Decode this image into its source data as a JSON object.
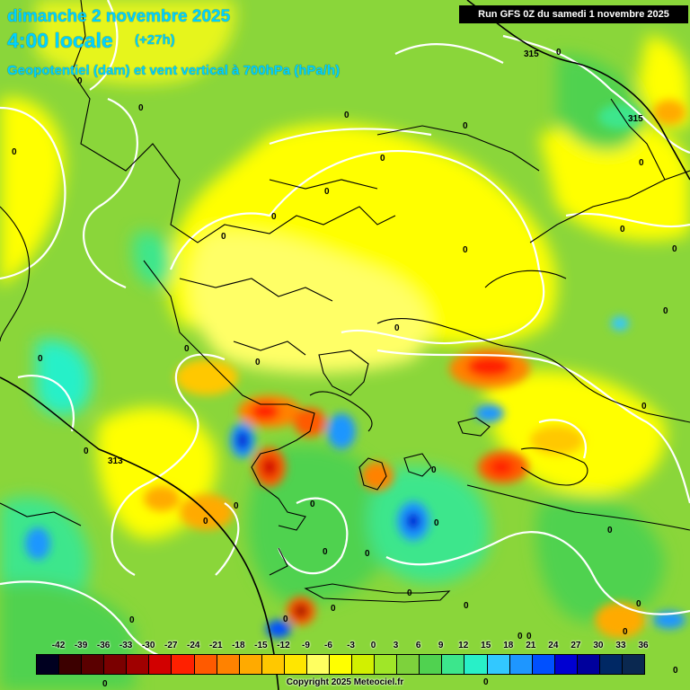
{
  "title": {
    "date": "dimanche 2 novembre 2025",
    "time": "4:00 locale",
    "offset": "(+27h)",
    "parameter": "Geopotentiel (dam) et vent vertical à 700hPa (hPa/h)"
  },
  "run_label": "Run GFS 0Z du samedi 1 novembre 2025",
  "copyright": "Copyright 2025 Meteociel.fr",
  "legend": {
    "ticks": [
      "-42",
      "-39",
      "-36",
      "-33",
      "-30",
      "-27",
      "-24",
      "-21",
      "-18",
      "-15",
      "-12",
      "-9",
      "-6",
      "-3",
      "0",
      "3",
      "6",
      "9",
      "12",
      "15",
      "18",
      "21",
      "24",
      "27",
      "30",
      "33",
      "36"
    ],
    "colors": [
      "#000020",
      "#3c0000",
      "#5a0000",
      "#7a0000",
      "#a00000",
      "#d20000",
      "#ff2000",
      "#ff5a00",
      "#ff8200",
      "#ffaa00",
      "#ffc800",
      "#ffe600",
      "#ffff60",
      "#ffff00",
      "#d2f000",
      "#a0e628",
      "#7dd23c",
      "#50d250",
      "#3ce68c",
      "#28f0c8",
      "#32c8ff",
      "#1e96ff",
      "#0050ff",
      "#0000d2",
      "#00009c",
      "#002864",
      "#0a2850"
    ]
  },
  "geopotential_labels": [
    "315",
    "315",
    "313"
  ],
  "contour_labels": [
    "0",
    "0",
    "0",
    "0",
    "0",
    "0",
    "0",
    "0",
    "0",
    "0",
    "0",
    "0",
    "0",
    "0",
    "0",
    "0",
    "0",
    "0",
    "0",
    "0",
    "0",
    "0",
    "0",
    "0",
    "0",
    "0",
    "0",
    "0",
    "0",
    "0",
    "0",
    "0",
    "0",
    "0",
    "0",
    "0",
    "0",
    "0",
    "0",
    "0",
    "0"
  ]
}
